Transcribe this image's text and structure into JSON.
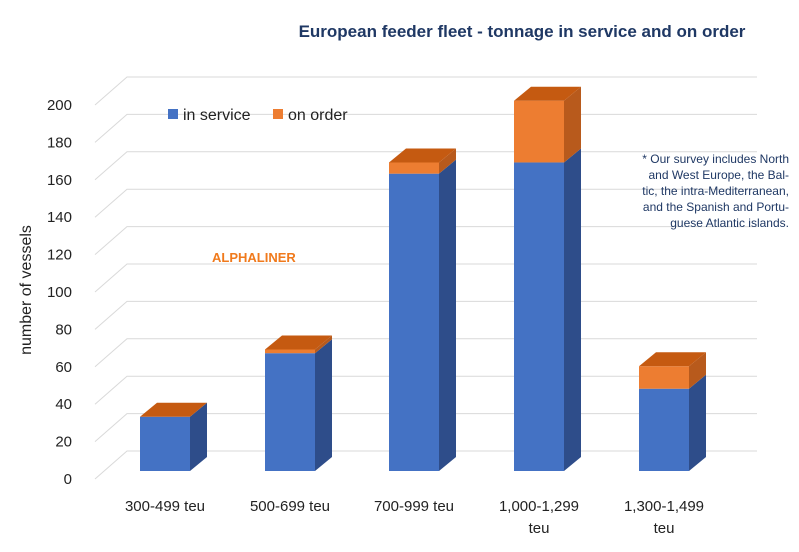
{
  "chart_data": {
    "type": "bar",
    "stacked": true,
    "title": "European feeder fleet - tonnage in service and on order",
    "ylabel": "number of vessels",
    "xlabel": "",
    "ylim": [
      0,
      200
    ],
    "yticks": [
      0,
      20,
      40,
      60,
      80,
      100,
      120,
      140,
      160,
      180,
      200
    ],
    "categories": [
      [
        "300-499 teu"
      ],
      [
        "500-699 teu"
      ],
      [
        "700-999 teu"
      ],
      [
        "1,000-1,299",
        "teu"
      ],
      [
        "1,300-1,499",
        "teu"
      ]
    ],
    "series": [
      {
        "name": "in service",
        "color": "#4472c4",
        "side_color": "#2e4d8a",
        "top_color": "#c55a11",
        "values": [
          29,
          63,
          159,
          165,
          44
        ]
      },
      {
        "name": "on order",
        "color": "#ed7d31",
        "side_color": "#b85a1c",
        "top_color": "#c55a11",
        "values": [
          0,
          2,
          6,
          33,
          12
        ]
      }
    ],
    "legend": "top-left",
    "grid": true,
    "three_d": true,
    "annotations": {
      "watermark": "ALPHALINER",
      "note": [
        "* Our survey includes North",
        "and West Europe, the Bal-",
        "tic, the intra-Mediterranean,",
        "and the Spanish and Portu-",
        "guese Atlantic islands."
      ]
    }
  }
}
